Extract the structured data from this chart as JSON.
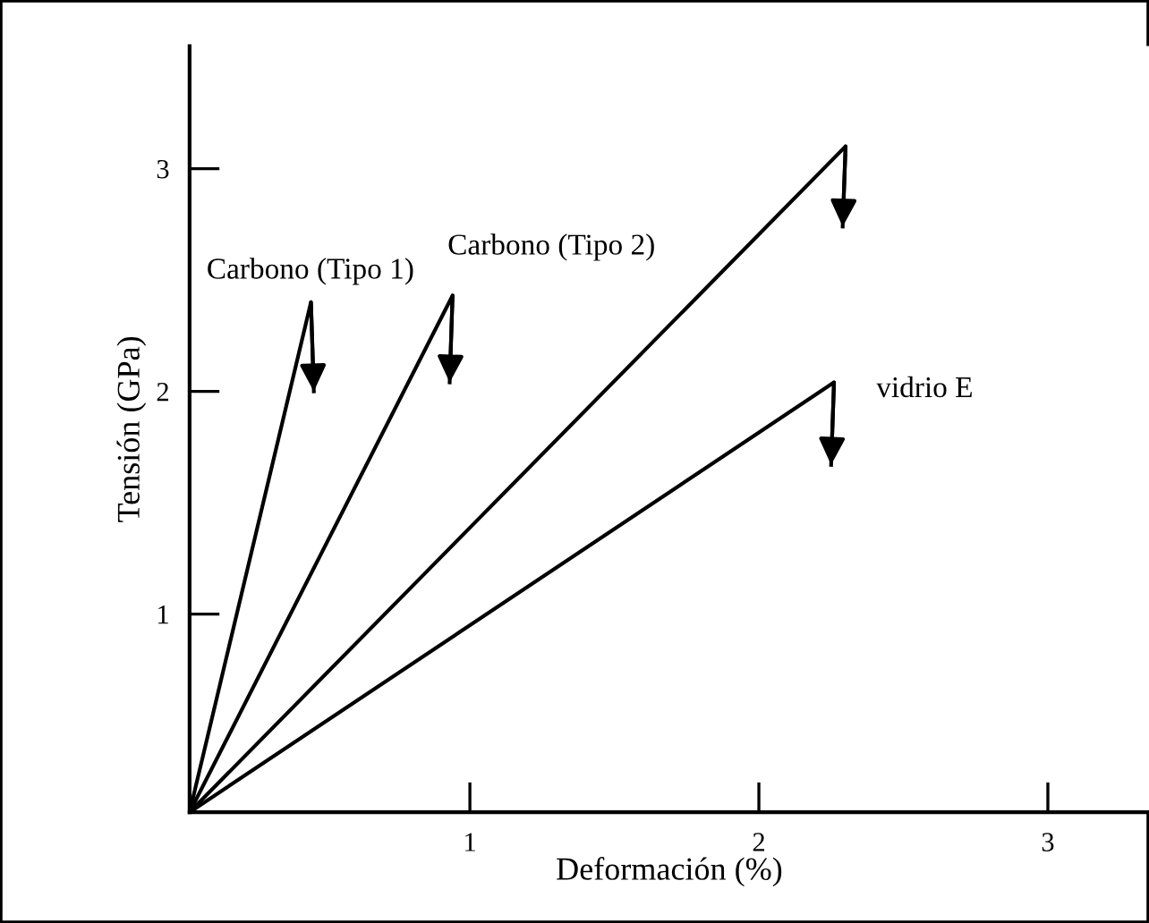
{
  "chart_data": {
    "type": "line",
    "xlabel": "Deformación (%)",
    "ylabel": "Tensión (GPa)",
    "xlim": [
      0.03,
      3.35
    ],
    "ylim": [
      0.11,
      3.55
    ],
    "xticks": [
      1,
      2,
      3
    ],
    "yticks": [
      1,
      2,
      3
    ],
    "grid": false,
    "marker": "none",
    "line_style": "solid",
    "series": [
      {
        "name": "Carbono (Tipo 1)",
        "color": "#000000",
        "x": [
          0.03,
          0.45,
          0.46
        ],
        "values": [
          0.11,
          2.4,
          2.0
        ]
      },
      {
        "name": "Carbono (Tipo 2)",
        "color": "#000000",
        "x": [
          0.03,
          0.94,
          0.93
        ],
        "values": [
          0.11,
          2.43,
          2.04
        ]
      },
      {
        "color": "#000000",
        "x": [
          0.03,
          2.3,
          2.29
        ],
        "values": [
          0.11,
          3.1,
          2.74
        ]
      },
      {
        "name": "vidrio E",
        "color": "#000000",
        "x": [
          0.03,
          2.26,
          2.25
        ],
        "values": [
          0.11,
          2.04,
          1.67
        ]
      }
    ]
  }
}
